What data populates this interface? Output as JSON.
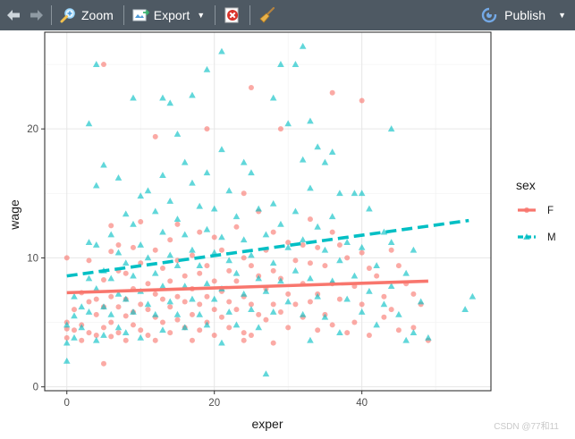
{
  "toolbar": {
    "back_icon": "left-arrow-icon",
    "forward_icon": "right-arrow-icon",
    "zoom_label": "Zoom",
    "export_label": "Export",
    "publish_label": "Publish",
    "clear_icon": "clear-plot-icon",
    "broom_icon": "broom-icon"
  },
  "colors": {
    "toolbar_bg": "#4e5963",
    "series_F": "#F8766D",
    "series_M": "#00BFC4"
  },
  "watermark": "CSDN @77和11",
  "chart_data": {
    "type": "scatter",
    "xlabel": "exper",
    "ylabel": "wage",
    "xlim": [
      -3,
      57.5
    ],
    "ylim": [
      -0.3,
      27.5
    ],
    "x_ticks": [
      0,
      20,
      40
    ],
    "y_ticks": [
      0,
      10,
      20
    ],
    "grid": true,
    "legend": {
      "title": "sex",
      "placement": "right",
      "entries": [
        "F",
        "M"
      ]
    },
    "series": [
      {
        "name": "F",
        "marker": "circle",
        "line_style": "solid",
        "trend": {
          "x": [
            0,
            49
          ],
          "y": [
            7.3,
            8.2
          ]
        },
        "points": [
          [
            0,
            10.0
          ],
          [
            0,
            5.0
          ],
          [
            0,
            4.5
          ],
          [
            0,
            3.8
          ],
          [
            1,
            6.0
          ],
          [
            1,
            4.4
          ],
          [
            2,
            7.3
          ],
          [
            2,
            4.8
          ],
          [
            2,
            3.6
          ],
          [
            3,
            9.8
          ],
          [
            3,
            6.6
          ],
          [
            3,
            4.2
          ],
          [
            4,
            6.8
          ],
          [
            4,
            5.6
          ],
          [
            4,
            4.0
          ],
          [
            5,
            8.3
          ],
          [
            5,
            6.2
          ],
          [
            5,
            4.6
          ],
          [
            5,
            25.0
          ],
          [
            5,
            1.8
          ],
          [
            6,
            12.5
          ],
          [
            6,
            10.5
          ],
          [
            6,
            7.0
          ],
          [
            6,
            5.0
          ],
          [
            6,
            3.9
          ],
          [
            7,
            11.0
          ],
          [
            7,
            9.0
          ],
          [
            7,
            6.2
          ],
          [
            7,
            4.2
          ],
          [
            8,
            8.8
          ],
          [
            8,
            6.8
          ],
          [
            8,
            5.5
          ],
          [
            8,
            3.6
          ],
          [
            9,
            10.8
          ],
          [
            9,
            7.6
          ],
          [
            9,
            5.8
          ],
          [
            9,
            4.8
          ],
          [
            10,
            12.8
          ],
          [
            10,
            9.6
          ],
          [
            10,
            6.4
          ],
          [
            10,
            4.4
          ],
          [
            11,
            8.0
          ],
          [
            11,
            6.0
          ],
          [
            11,
            4.0
          ],
          [
            12,
            19.4
          ],
          [
            12,
            10.6
          ],
          [
            12,
            7.2
          ],
          [
            12,
            5.4
          ],
          [
            12,
            3.6
          ],
          [
            13,
            9.2
          ],
          [
            13,
            6.8
          ],
          [
            13,
            5.0
          ],
          [
            14,
            11.4
          ],
          [
            14,
            8.2
          ],
          [
            14,
            6.2
          ],
          [
            14,
            4.2
          ],
          [
            15,
            12.6
          ],
          [
            15,
            9.8
          ],
          [
            15,
            7.0
          ],
          [
            15,
            5.2
          ],
          [
            16,
            8.6
          ],
          [
            16,
            6.6
          ],
          [
            16,
            4.6
          ],
          [
            17,
            10.2
          ],
          [
            17,
            7.6
          ],
          [
            17,
            5.6
          ],
          [
            17,
            3.6
          ],
          [
            18,
            12.0
          ],
          [
            18,
            8.8
          ],
          [
            18,
            6.4
          ],
          [
            18,
            4.4
          ],
          [
            19,
            20.0
          ],
          [
            19,
            9.4
          ],
          [
            19,
            7.0
          ],
          [
            19,
            5.0
          ],
          [
            20,
            11.6
          ],
          [
            20,
            8.2
          ],
          [
            20,
            6.0
          ],
          [
            20,
            4.0
          ],
          [
            21,
            10.6
          ],
          [
            21,
            7.4
          ],
          [
            21,
            5.4
          ],
          [
            22,
            9.0
          ],
          [
            22,
            6.6
          ],
          [
            22,
            4.6
          ],
          [
            23,
            12.4
          ],
          [
            23,
            8.2
          ],
          [
            23,
            6.0
          ],
          [
            24,
            15.0
          ],
          [
            24,
            10.0
          ],
          [
            24,
            7.0
          ],
          [
            24,
            4.2
          ],
          [
            24,
            3.6
          ],
          [
            25,
            23.2
          ],
          [
            25,
            9.4
          ],
          [
            25,
            6.4
          ],
          [
            25,
            4.0
          ],
          [
            26,
            13.6
          ],
          [
            26,
            8.6
          ],
          [
            26,
            5.6
          ],
          [
            27,
            10.6
          ],
          [
            27,
            7.6
          ],
          [
            27,
            5.2
          ],
          [
            28,
            12.0
          ],
          [
            28,
            9.0
          ],
          [
            28,
            6.4
          ],
          [
            28,
            3.4
          ],
          [
            29,
            20.0
          ],
          [
            29,
            8.4
          ],
          [
            29,
            5.8
          ],
          [
            30,
            11.2
          ],
          [
            30,
            7.2
          ],
          [
            30,
            4.6
          ],
          [
            31,
            9.8
          ],
          [
            31,
            6.4
          ],
          [
            32,
            11.0
          ],
          [
            32,
            8.0
          ],
          [
            32,
            5.4
          ],
          [
            33,
            13.0
          ],
          [
            33,
            9.6
          ],
          [
            33,
            6.6
          ],
          [
            34,
            10.8
          ],
          [
            34,
            7.2
          ],
          [
            34,
            4.4
          ],
          [
            35,
            9.4
          ],
          [
            35,
            5.6
          ],
          [
            36,
            22.8
          ],
          [
            36,
            12.0
          ],
          [
            36,
            8.0
          ],
          [
            36,
            4.8
          ],
          [
            37,
            11.0
          ],
          [
            37,
            6.8
          ],
          [
            38,
            10.0
          ],
          [
            38,
            4.2
          ],
          [
            39,
            7.8
          ],
          [
            39,
            5.0
          ],
          [
            40,
            22.2
          ],
          [
            40,
            10.4
          ],
          [
            40,
            6.4
          ],
          [
            41,
            9.2
          ],
          [
            41,
            4.0
          ],
          [
            42,
            8.6
          ],
          [
            43,
            7.0
          ],
          [
            43,
            5.4
          ],
          [
            44,
            10.6
          ],
          [
            44,
            6.0
          ],
          [
            45,
            9.4
          ],
          [
            45,
            4.4
          ],
          [
            46,
            8.0
          ],
          [
            47,
            7.2
          ],
          [
            47,
            4.6
          ],
          [
            48,
            6.4
          ],
          [
            49,
            3.6
          ]
        ]
      },
      {
        "name": "M",
        "marker": "triangle",
        "line_style": "dashed",
        "trend": {
          "x": [
            0,
            54.5
          ],
          "y": [
            8.6,
            12.9
          ]
        },
        "points": [
          [
            0,
            2.0
          ],
          [
            0,
            4.8
          ],
          [
            0,
            3.4
          ],
          [
            1,
            7.0
          ],
          [
            1,
            5.5
          ],
          [
            1,
            3.8
          ],
          [
            2,
            6.2
          ],
          [
            2,
            4.6
          ],
          [
            3,
            20.4
          ],
          [
            3,
            11.2
          ],
          [
            3,
            8.4
          ],
          [
            3,
            5.8
          ],
          [
            4,
            25.0
          ],
          [
            4,
            15.6
          ],
          [
            4,
            11.0
          ],
          [
            4,
            7.6
          ],
          [
            4,
            3.6
          ],
          [
            5,
            17.2
          ],
          [
            5,
            9.0
          ],
          [
            5,
            6.2
          ],
          [
            5,
            4.0
          ],
          [
            6,
            11.8
          ],
          [
            6,
            8.4
          ],
          [
            6,
            5.6
          ],
          [
            7,
            16.2
          ],
          [
            7,
            10.4
          ],
          [
            7,
            7.2
          ],
          [
            7,
            4.6
          ],
          [
            8,
            13.4
          ],
          [
            8,
            9.6
          ],
          [
            8,
            6.8
          ],
          [
            8,
            4.2
          ],
          [
            9,
            22.4
          ],
          [
            9,
            12.6
          ],
          [
            9,
            8.6
          ],
          [
            9,
            5.8
          ],
          [
            10,
            14.8
          ],
          [
            10,
            11.0
          ],
          [
            10,
            7.4
          ],
          [
            10,
            3.8
          ],
          [
            11,
            15.2
          ],
          [
            11,
            10.0
          ],
          [
            11,
            6.4
          ],
          [
            12,
            13.6
          ],
          [
            12,
            8.8
          ],
          [
            12,
            5.6
          ],
          [
            13,
            22.4
          ],
          [
            13,
            16.4
          ],
          [
            13,
            12.0
          ],
          [
            13,
            7.8
          ],
          [
            13,
            4.4
          ],
          [
            14,
            22.0
          ],
          [
            14,
            14.4
          ],
          [
            14,
            10.2
          ],
          [
            14,
            6.6
          ],
          [
            15,
            19.6
          ],
          [
            15,
            13.0
          ],
          [
            15,
            9.4
          ],
          [
            15,
            5.6
          ],
          [
            16,
            17.4
          ],
          [
            16,
            11.8
          ],
          [
            16,
            7.8
          ],
          [
            16,
            4.6
          ],
          [
            17,
            22.6
          ],
          [
            17,
            15.8
          ],
          [
            17,
            10.6
          ],
          [
            17,
            6.8
          ],
          [
            18,
            14.0
          ],
          [
            18,
            9.4
          ],
          [
            18,
            5.6
          ],
          [
            19,
            24.6
          ],
          [
            19,
            16.6
          ],
          [
            19,
            12.2
          ],
          [
            19,
            8.0
          ],
          [
            19,
            4.8
          ],
          [
            20,
            13.8
          ],
          [
            20,
            10.4
          ],
          [
            20,
            6.8
          ],
          [
            21,
            26.0
          ],
          [
            21,
            18.4
          ],
          [
            21,
            11.6
          ],
          [
            21,
            7.6
          ],
          [
            21,
            3.4
          ],
          [
            22,
            15.2
          ],
          [
            22,
            9.8
          ],
          [
            22,
            5.8
          ],
          [
            23,
            13.2
          ],
          [
            23,
            8.8
          ],
          [
            23,
            4.8
          ],
          [
            24,
            17.4
          ],
          [
            24,
            11.4
          ],
          [
            24,
            7.2
          ],
          [
            25,
            16.6
          ],
          [
            25,
            10.2
          ],
          [
            25,
            6.0
          ],
          [
            26,
            13.8
          ],
          [
            26,
            8.4
          ],
          [
            26,
            4.6
          ],
          [
            27,
            1.0
          ],
          [
            27,
            11.8
          ],
          [
            27,
            7.4
          ],
          [
            28,
            22.4
          ],
          [
            28,
            14.2
          ],
          [
            28,
            9.6
          ],
          [
            28,
            5.8
          ],
          [
            29,
            25.0
          ],
          [
            29,
            12.6
          ],
          [
            29,
            8.2
          ],
          [
            30,
            20.4
          ],
          [
            30,
            10.8
          ],
          [
            30,
            6.6
          ],
          [
            31,
            25.0
          ],
          [
            31,
            13.6
          ],
          [
            31,
            9.0
          ],
          [
            32,
            26.4
          ],
          [
            32,
            17.6
          ],
          [
            32,
            11.4
          ],
          [
            32,
            5.6
          ],
          [
            33,
            20.6
          ],
          [
            33,
            15.4
          ],
          [
            33,
            8.4
          ],
          [
            33,
            3.6
          ],
          [
            34,
            18.6
          ],
          [
            34,
            12.4
          ],
          [
            34,
            7.0
          ],
          [
            35,
            17.4
          ],
          [
            35,
            10.6
          ],
          [
            35,
            5.4
          ],
          [
            36,
            18.2
          ],
          [
            36,
            13.2
          ],
          [
            36,
            8.2
          ],
          [
            37,
            15.0
          ],
          [
            37,
            9.8
          ],
          [
            37,
            4.2
          ],
          [
            38,
            11.2
          ],
          [
            38,
            6.8
          ],
          [
            39,
            15.0
          ],
          [
            39,
            8.6
          ],
          [
            40,
            15.0
          ],
          [
            40,
            10.8
          ],
          [
            40,
            5.8
          ],
          [
            41,
            13.8
          ],
          [
            41,
            7.4
          ],
          [
            42,
            9.4
          ],
          [
            42,
            4.8
          ],
          [
            43,
            12.0
          ],
          [
            43,
            6.4
          ],
          [
            44,
            20.0
          ],
          [
            44,
            11.2
          ],
          [
            44,
            7.8
          ],
          [
            45,
            5.6
          ],
          [
            46,
            8.8
          ],
          [
            46,
            3.6
          ],
          [
            47,
            10.6
          ],
          [
            47,
            4.2
          ],
          [
            48,
            6.6
          ],
          [
            49,
            3.8
          ],
          [
            54,
            6.0
          ],
          [
            55,
            7.0
          ]
        ]
      }
    ]
  }
}
